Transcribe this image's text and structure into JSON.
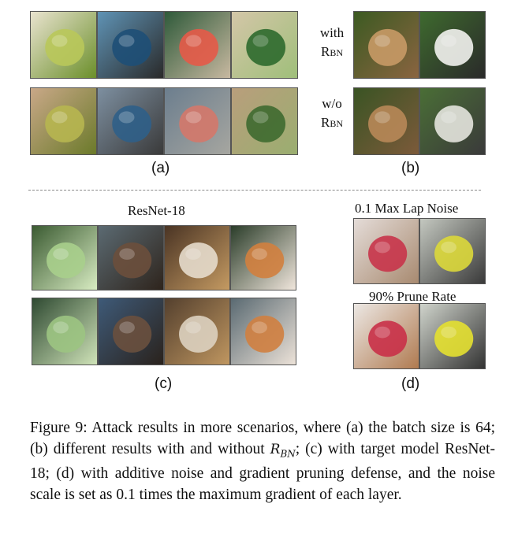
{
  "panel_a": {
    "label": "(a)",
    "top_row": [
      {
        "name": "zucchini-plate-image",
        "colors": [
          "#e9e3cf",
          "#b9c85a",
          "#6b8f2a"
        ]
      },
      {
        "name": "blue-tractor-image",
        "colors": [
          "#5f93b5",
          "#1e4f77",
          "#2a2a2a"
        ]
      },
      {
        "name": "flamingo-image",
        "colors": [
          "#2f5a3a",
          "#e55a48",
          "#c7b8a0"
        ]
      },
      {
        "name": "bok-choy-image",
        "colors": [
          "#d4c6a8",
          "#2e6a2e",
          "#9fbf7a"
        ]
      }
    ],
    "bottom_row": [
      {
        "name": "zucchini-plate-reconstructed-image",
        "colors": [
          "#c9a888",
          "#b7b650",
          "#6b7a2a"
        ]
      },
      {
        "name": "blue-tractor-reconstructed-image",
        "colors": [
          "#7d8fa0",
          "#2f5f88",
          "#3a3a3a"
        ]
      },
      {
        "name": "flamingo-reconstructed-image",
        "colors": [
          "#6c7e8e",
          "#d4786a",
          "#a6a6a0"
        ]
      },
      {
        "name": "bok-choy-reconstructed-image",
        "colors": [
          "#b99e7c",
          "#3e6a30",
          "#9aae70"
        ]
      }
    ]
  },
  "panel_b": {
    "label": "(b)",
    "with_label_1": "with",
    "with_label_2": "R",
    "with_label_sub": "BN",
    "without_label_1": "w/o",
    "without_label_2": "R",
    "without_label_sub": "BN",
    "top_row": [
      {
        "name": "rabbit-image",
        "colors": [
          "#3c5a22",
          "#c89a66",
          "#8a6440"
        ]
      },
      {
        "name": "shuttlecock-image",
        "colors": [
          "#3e6a2e",
          "#f2f2ee",
          "#2a2a2a"
        ]
      }
    ],
    "bottom_row": [
      {
        "name": "rabbit-reconstructed-image",
        "colors": [
          "#3a5424",
          "#b88858",
          "#7c5a3a"
        ]
      },
      {
        "name": "shuttlecock-reconstructed-image",
        "colors": [
          "#4a6e36",
          "#e4e4de",
          "#3a3a3a"
        ]
      }
    ]
  },
  "panel_c": {
    "label": "(c)",
    "title": "ResNet-18",
    "top_row": [
      {
        "name": "cabbage-image",
        "colors": [
          "#3b5b32",
          "#a9cf8c",
          "#d8ecc2"
        ]
      },
      {
        "name": "ape-face-image",
        "colors": [
          "#5b6a72",
          "#6b4f3c",
          "#2e241c"
        ]
      },
      {
        "name": "food-plate-image",
        "colors": [
          "#4a3424",
          "#e6dccc",
          "#c49a62"
        ]
      },
      {
        "name": "fox-image",
        "colors": [
          "#2b3d2a",
          "#d2803e",
          "#f0e6dc"
        ]
      }
    ],
    "bottom_row": [
      {
        "name": "cabbage-reconstructed-image",
        "colors": [
          "#2f4a32",
          "#9cc482",
          "#cfe3b8"
        ]
      },
      {
        "name": "ape-face-reconstructed-image",
        "colors": [
          "#3e5a78",
          "#6a503e",
          "#2a221c"
        ]
      },
      {
        "name": "food-plate-reconstructed-image",
        "colors": [
          "#54402e",
          "#ddd2c0",
          "#bf9660"
        ]
      },
      {
        "name": "fox-reconstructed-image",
        "colors": [
          "#5a6a72",
          "#d08040",
          "#ece2d8"
        ]
      }
    ]
  },
  "panel_d": {
    "label": "(d)",
    "noise_title": "0.1 Max Lap Noise",
    "prune_title": "90% Prune Rate",
    "top_row": [
      {
        "name": "apples-noise-image",
        "colors": [
          "#e4dcd8",
          "#c8344a",
          "#a88a70"
        ]
      },
      {
        "name": "yellow-car-noise-image",
        "colors": [
          "#c4c8c0",
          "#dcd83a",
          "#3a3a3a"
        ]
      }
    ],
    "bottom_row": [
      {
        "name": "apples-prune-image",
        "colors": [
          "#ece8e4",
          "#c93048",
          "#b07a50"
        ]
      },
      {
        "name": "yellow-car-prune-image",
        "colors": [
          "#d0d4cc",
          "#e4e030",
          "#333333"
        ]
      }
    ]
  },
  "caption": {
    "text_1": "Figure 9: Attack results in more scenarios, where (a) the batch size is 64; (b) different results with and without ",
    "math_main": "R",
    "math_sub": "BN",
    "text_2": "; (c) with target model ResNet-18; (d) with additive noise and gradient pruning defense, and the noise scale is set as 0.1 times the maximum gradient of each layer."
  }
}
